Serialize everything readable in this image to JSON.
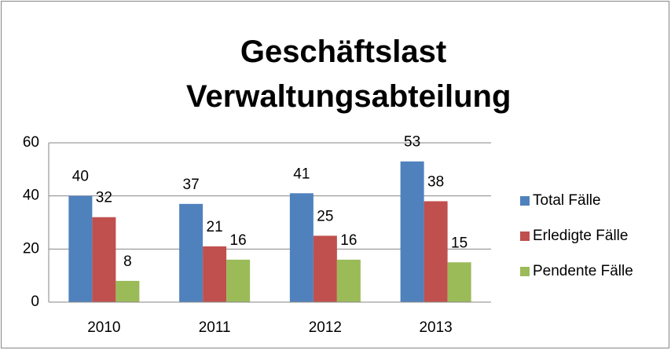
{
  "chart_data": {
    "type": "bar",
    "title": "Geschäftslast Verwaltungsabteilung",
    "categories": [
      "2010",
      "2011",
      "2012",
      "2013"
    ],
    "series": [
      {
        "name": "Total Fälle",
        "color": "#4f81bd",
        "values": [
          40,
          37,
          41,
          53
        ]
      },
      {
        "name": "Erledigte Fälle",
        "color": "#c0504d",
        "values": [
          32,
          21,
          25,
          38
        ]
      },
      {
        "name": "Pendente Fälle",
        "color": "#9bbb59",
        "values": [
          8,
          16,
          16,
          15
        ]
      }
    ],
    "ylim": [
      0,
      60
    ],
    "yticks": [
      0,
      20,
      40,
      60
    ],
    "grid": true,
    "legend": "right"
  }
}
